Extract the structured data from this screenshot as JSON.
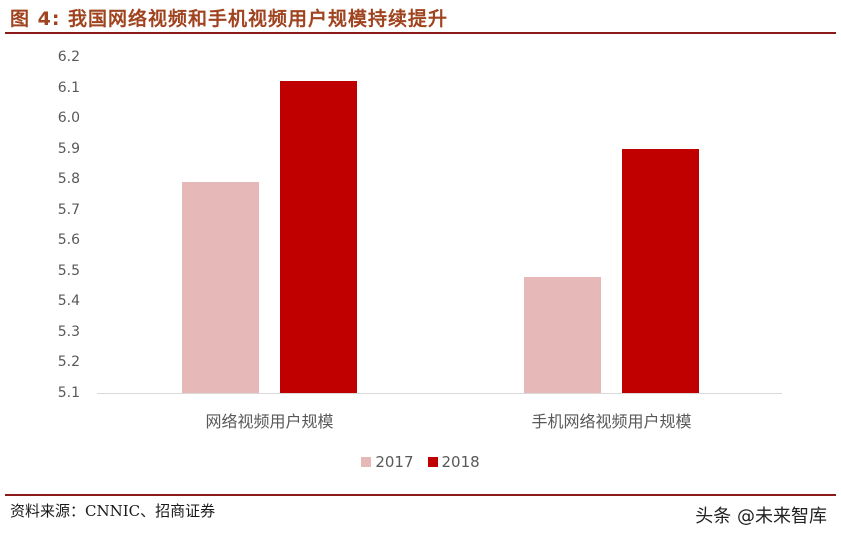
{
  "header": {
    "title": "图 4:  我国网络视频和手机视频用户规模持续提升"
  },
  "footer": {
    "source": "资料来源：CNNIC、招商证券",
    "watermark": "头条 @未来智库"
  },
  "colors": {
    "title": "#A0431F",
    "rule": "#8B1A1A",
    "series_2017": "#E6B8B7",
    "series_2018": "#C00000",
    "axis_text": "#595959"
  },
  "chart_data": {
    "type": "bar",
    "title": "我国网络视频和手机视频用户规模持续提升",
    "xlabel": "",
    "ylabel": "",
    "categories": [
      "网络视频用户规模",
      "手机网络视频用户规模"
    ],
    "series": [
      {
        "name": "2017",
        "values": [
          5.79,
          5.48
        ],
        "color": "#E6B8B7"
      },
      {
        "name": "2018",
        "values": [
          6.12,
          5.9
        ],
        "color": "#C00000"
      }
    ],
    "ylim": [
      5.1,
      6.2
    ],
    "yticks": [
      "6.2",
      "6.1",
      "6.0",
      "5.9",
      "5.8",
      "5.7",
      "5.6",
      "5.5",
      "5.4",
      "5.3",
      "5.2",
      "5.1"
    ],
    "grid": false,
    "legend_position": "bottom"
  }
}
